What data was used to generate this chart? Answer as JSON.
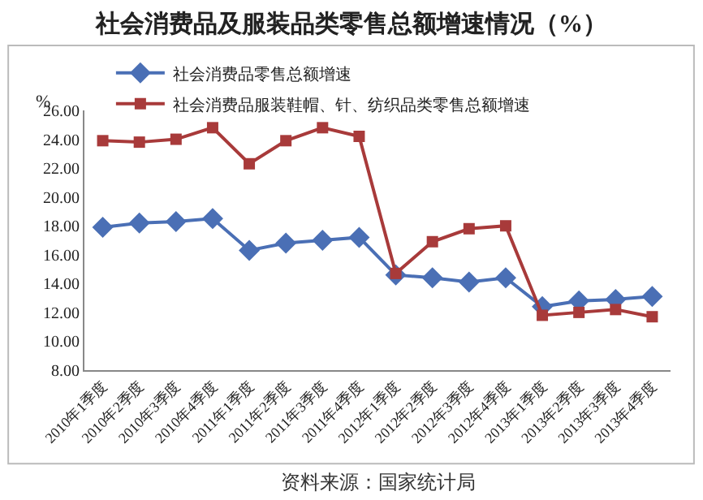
{
  "chart_data": {
    "type": "line",
    "title": "社会消费品及服装品类零售总额增速情况（%）",
    "ylabel": "%",
    "categories": [
      "2010年1季度",
      "2010年2季度",
      "2010年3季度",
      "2010年4季度",
      "2011年1季度",
      "2011年2季度",
      "2011年3季度",
      "2011年4季度",
      "2012年1季度",
      "2012年2季度",
      "2012年3季度",
      "2012年4季度",
      "2013年1季度",
      "2013年2季度",
      "2013年3季度",
      "2013年4季度"
    ],
    "series": [
      {
        "name": "社会消费品零售总额增速",
        "color": "#4a6fb5",
        "marker": "diamond",
        "values": [
          17.9,
          18.2,
          18.3,
          18.5,
          16.3,
          16.8,
          17.0,
          17.2,
          14.6,
          14.4,
          14.1,
          14.4,
          12.4,
          12.8,
          12.9,
          13.1
        ]
      },
      {
        "name": "社会消费品服装鞋帽、针、纺织品类零售总额增速",
        "color": "#a83a3a",
        "marker": "square",
        "values": [
          23.9,
          23.8,
          24.0,
          24.8,
          22.3,
          23.9,
          24.8,
          24.2,
          14.7,
          16.9,
          17.8,
          18.0,
          11.8,
          12.0,
          12.2,
          11.7
        ]
      }
    ],
    "ylim": [
      8,
      26
    ],
    "yticks": [
      {
        "value": 8,
        "label": "8.00"
      },
      {
        "value": 10,
        "label": "10.00"
      },
      {
        "value": 12,
        "label": "12.00"
      },
      {
        "value": 14,
        "label": "14.00"
      },
      {
        "value": 16,
        "label": "16.00"
      },
      {
        "value": 18,
        "label": "18.00"
      },
      {
        "value": 20,
        "label": "20.00"
      },
      {
        "value": 22,
        "label": "22.00"
      },
      {
        "value": 24,
        "label": "24.00"
      },
      {
        "value": 26,
        "label": "26.00"
      }
    ],
    "grid": false,
    "legend": "top left",
    "line_style": "solid",
    "annotations": [
      "资料来源：国家统计局"
    ]
  }
}
